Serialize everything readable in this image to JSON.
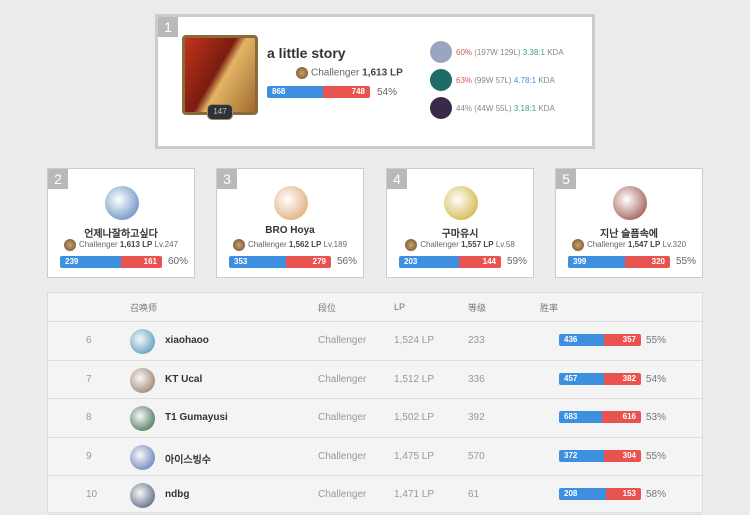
{
  "top": {
    "rank": "1",
    "name": "a little story",
    "level": "147",
    "tier": "Challenger",
    "lp": "1,613 LP",
    "wins": "868",
    "losses": "748",
    "winrate": "54%",
    "champions": [
      {
        "wr": "60%",
        "record": "(197W 129L)",
        "kda": "3.38:1",
        "kda_label": "KDA",
        "icon": "#9aa6c0"
      },
      {
        "wr": "63%",
        "record": "(99W 57L)",
        "kda": "4.78:1",
        "kda_label": "KDA",
        "icon": "#1f6b6a"
      },
      {
        "wr": "44%",
        "record": "(44W 55L)",
        "kda": "3.18:1",
        "kda_label": "KDA",
        "icon": "#3a2a4a"
      }
    ]
  },
  "cards": [
    {
      "rank": "2",
      "name": "언제나잘하고싶다",
      "tier": "Challenger",
      "lp": "1,613 LP",
      "level": "Lv.247",
      "wins": "239",
      "losses": "161",
      "winrate": "60%",
      "icon": "#4a78b8"
    },
    {
      "rank": "3",
      "name": "BRO Hoya",
      "tier": "Challenger",
      "lp": "1,562 LP",
      "level": "Lv.189",
      "wins": "353",
      "losses": "279",
      "winrate": "56%",
      "icon": "#d89a5a"
    },
    {
      "rank": "4",
      "name": "구마유시",
      "tier": "Challenger",
      "lp": "1,557 LP",
      "level": "Lv.58",
      "wins": "203",
      "losses": "144",
      "winrate": "59%",
      "icon": "#c9a820"
    },
    {
      "rank": "5",
      "name": "지난 슬픔속에",
      "tier": "Challenger",
      "lp": "1,547 LP",
      "level": "Lv.320",
      "wins": "399",
      "losses": "320",
      "winrate": "55%",
      "icon": "#8a3a30"
    }
  ],
  "table": {
    "headers": [
      "召唤师",
      "段位",
      "LP",
      "等级",
      "胜率"
    ],
    "rows": [
      {
        "rank": "6",
        "name": "xiaohaoo",
        "tier": "Challenger",
        "lp": "1,524 LP",
        "level": "233",
        "wins": "436",
        "losses": "357",
        "winrate": "55%",
        "icon": "#3a8ab0"
      },
      {
        "rank": "7",
        "name": "KT Ucal",
        "tier": "Challenger",
        "lp": "1,512 LP",
        "level": "336",
        "wins": "457",
        "losses": "382",
        "winrate": "54%",
        "icon": "#8a6a50"
      },
      {
        "rank": "8",
        "name": "T1 Gumayusi",
        "tier": "Challenger",
        "lp": "1,502 LP",
        "level": "392",
        "wins": "683",
        "losses": "616",
        "winrate": "53%",
        "icon": "#2a5a3a"
      },
      {
        "rank": "9",
        "name": "아이스빙수",
        "tier": "Challenger",
        "lp": "1,475 LP",
        "level": "570",
        "wins": "372",
        "losses": "304",
        "winrate": "55%",
        "icon": "#4a6ab0"
      },
      {
        "rank": "10",
        "name": "ndbg",
        "tier": "Challenger",
        "lp": "1,471 LP",
        "level": "61",
        "wins": "208",
        "losses": "153",
        "winrate": "58%",
        "icon": "#3a4a6a"
      }
    ]
  },
  "colors": {
    "win": "#3d8fe0",
    "loss": "#e9534f"
  }
}
